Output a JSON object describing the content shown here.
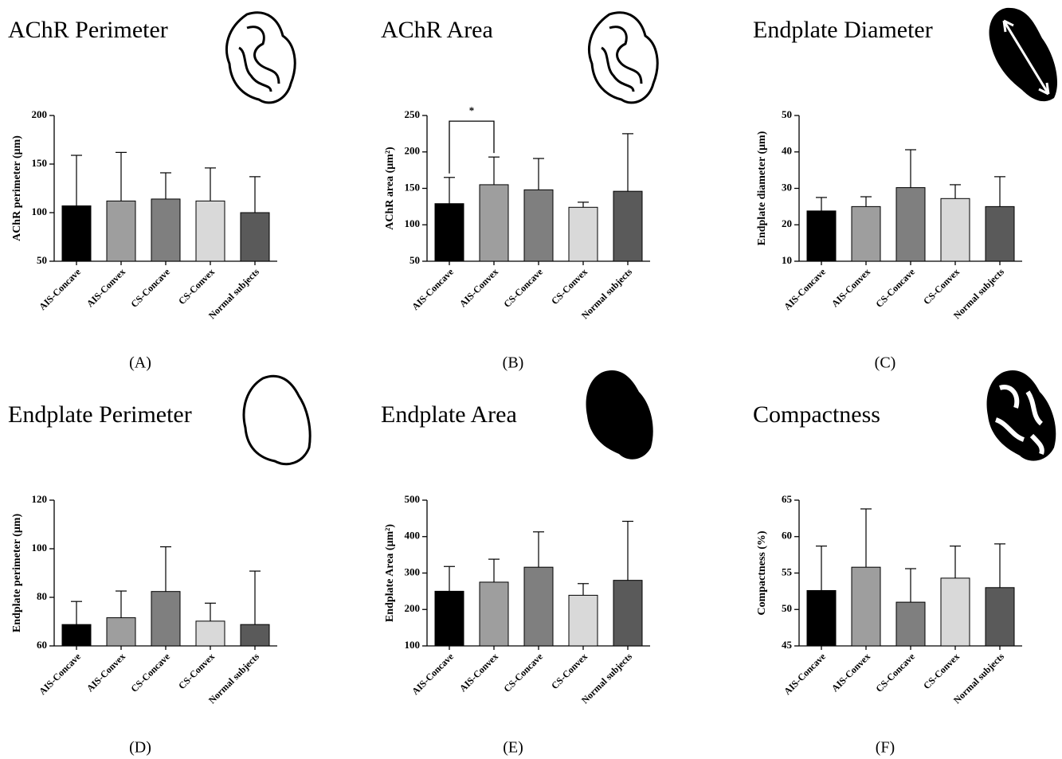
{
  "chart_data": [
    {
      "type": "bar",
      "title": "AChR Perimeter",
      "panel_label": "(A)",
      "y_label": "AChR perimeter (μm)",
      "categories": [
        "AIS-Concave",
        "AIS-Convex",
        "CS-Concave",
        "CS-Convex",
        "Normal subjects"
      ],
      "values": [
        107,
        112,
        114,
        112,
        100
      ],
      "errors": [
        52,
        50,
        27,
        34,
        37
      ],
      "colors": [
        "#000000",
        "#9e9e9e",
        "#7f7f7f",
        "#d9d9d9",
        "#5a5a5a"
      ],
      "ylim": [
        50,
        200
      ],
      "yticks": [
        50,
        100,
        150,
        200
      ]
    },
    {
      "type": "bar",
      "title": "AChR Area",
      "panel_label": "(B)",
      "y_label": "AChR area (μm²)",
      "categories": [
        "AIS-Concave",
        "AIS-Convex",
        "CS-Concave",
        "CS-Convex",
        "Normal subjects"
      ],
      "values": [
        129,
        155,
        148,
        124,
        146
      ],
      "errors": [
        36,
        38,
        43,
        7,
        79
      ],
      "colors": [
        "#000000",
        "#9e9e9e",
        "#7f7f7f",
        "#d9d9d9",
        "#5a5a5a"
      ],
      "ylim": [
        50,
        250
      ],
      "yticks": [
        50,
        100,
        150,
        200,
        250
      ],
      "significance": {
        "label": "*",
        "between": [
          "AIS-Concave",
          "AIS-Convex"
        ]
      }
    },
    {
      "type": "bar",
      "title": "Endplate Diameter",
      "panel_label": "(C)",
      "y_label": "Endplate diameter (μm)",
      "categories": [
        "AIS-Concave",
        "AIS-Convex",
        "CS-Concave",
        "CS-Convex",
        "Normal subjects"
      ],
      "values": [
        23.8,
        25,
        30.2,
        27.2,
        25
      ],
      "errors": [
        3.7,
        2.7,
        10.4,
        3.8,
        8.2
      ],
      "colors": [
        "#000000",
        "#9e9e9e",
        "#7f7f7f",
        "#d9d9d9",
        "#5a5a5a"
      ],
      "ylim": [
        10,
        50
      ],
      "yticks": [
        10,
        20,
        30,
        40,
        50
      ]
    },
    {
      "type": "bar",
      "title": "Endplate Perimeter",
      "panel_label": "(D)",
      "y_label": "Endplate perimeter (μm)",
      "categories": [
        "AIS-Concave",
        "AIS-Convex",
        "CS-Concave",
        "CS-Convex",
        "Normal subjects"
      ],
      "values": [
        68.8,
        71.6,
        82.4,
        70.2,
        68.8
      ],
      "errors": [
        9.5,
        11,
        18.4,
        7.4,
        22
      ],
      "colors": [
        "#000000",
        "#9e9e9e",
        "#7f7f7f",
        "#d9d9d9",
        "#5a5a5a"
      ],
      "ylim": [
        60,
        120
      ],
      "yticks": [
        60,
        80,
        100,
        120
      ]
    },
    {
      "type": "bar",
      "title": "Endplate Area",
      "panel_label": "(E)",
      "y_label": "Endplate Area (μm²)",
      "categories": [
        "AIS-Concave",
        "AIS-Convex",
        "CS-Concave",
        "CS-Convex",
        "Normal subjects"
      ],
      "values": [
        250,
        275,
        316,
        239,
        280
      ],
      "errors": [
        68,
        63,
        97,
        32,
        162
      ],
      "colors": [
        "#000000",
        "#9e9e9e",
        "#7f7f7f",
        "#d9d9d9",
        "#5a5a5a"
      ],
      "ylim": [
        100,
        500
      ],
      "yticks": [
        100,
        200,
        300,
        400,
        500
      ]
    },
    {
      "type": "bar",
      "title": "Compactness",
      "panel_label": "(F)",
      "y_label": "Compactness (%)",
      "categories": [
        "AIS-Concave",
        "AIS-Convex",
        "CS-Concave",
        "CS-Convex",
        "Normal subjects"
      ],
      "values": [
        52.6,
        55.8,
        51,
        54.3,
        53
      ],
      "errors": [
        6.1,
        8,
        4.6,
        4.4,
        6
      ],
      "colors": [
        "#000000",
        "#9e9e9e",
        "#7f7f7f",
        "#d9d9d9",
        "#5a5a5a"
      ],
      "ylim": [
        45,
        65
      ],
      "yticks": [
        45,
        50,
        55,
        60,
        65
      ]
    }
  ]
}
